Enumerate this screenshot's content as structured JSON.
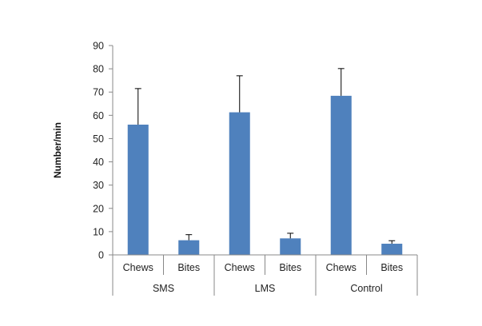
{
  "chart_data": {
    "type": "bar",
    "title": "",
    "ylabel": "Number/min",
    "xlabel": "",
    "ylim": [
      0,
      90
    ],
    "yticks": [
      0,
      10,
      20,
      30,
      40,
      50,
      60,
      70,
      80,
      90
    ],
    "grid": false,
    "legend": "none",
    "bar_color": "#4f81bd",
    "groups": [
      {
        "name": "SMS",
        "bars": [
          {
            "category": "Chews",
            "value": 56,
            "error": 15.5
          },
          {
            "category": "Bites",
            "value": 6.3,
            "error": 2.4
          }
        ]
      },
      {
        "name": "LMS",
        "bars": [
          {
            "category": "Chews",
            "value": 61.3,
            "error": 15.7
          },
          {
            "category": "Bites",
            "value": 7.1,
            "error": 2.2
          }
        ]
      },
      {
        "name": "Control",
        "bars": [
          {
            "category": "Chews",
            "value": 68.4,
            "error": 11.7
          },
          {
            "category": "Bites",
            "value": 4.8,
            "error": 1.3
          }
        ]
      }
    ]
  }
}
